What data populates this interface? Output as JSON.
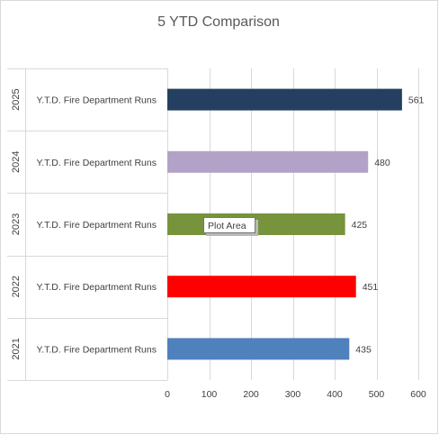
{
  "chart_data": {
    "type": "bar",
    "orientation": "horizontal",
    "title": "5 YTD Comparison",
    "xlim": [
      0,
      600
    ],
    "x_ticks": [
      0,
      100,
      200,
      300,
      400,
      500,
      600
    ],
    "grid": true,
    "legend": "none",
    "categories": [
      {
        "group": "2025",
        "label": "Y.T.D. Fire Department Runs",
        "value": 561,
        "color": "#243f60"
      },
      {
        "group": "2024",
        "label": "Y.T.D. Fire Department Runs",
        "value": 480,
        "color": "#b3a2c7"
      },
      {
        "group": "2023",
        "label": "Y.T.D. Fire Department Runs",
        "value": 425,
        "color": "#77933c"
      },
      {
        "group": "2022",
        "label": "Y.T.D. Fire Department Runs",
        "value": 451,
        "color": "#ff0000"
      },
      {
        "group": "2021",
        "label": "Y.T.D. Fire Department Runs",
        "value": 435,
        "color": "#4f81bd"
      }
    ]
  },
  "tooltip": {
    "text": "Plot Area"
  }
}
